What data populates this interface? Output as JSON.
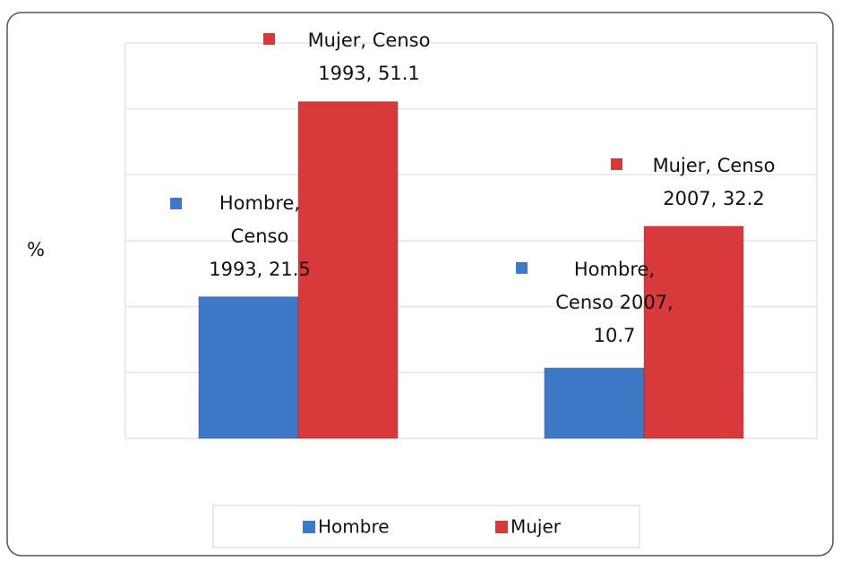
{
  "chart_data": {
    "type": "bar",
    "y_label": "%",
    "categories": [
      null,
      null
    ],
    "series": [
      {
        "name": "Hombre",
        "color": "#3f78c6",
        "values": [
          21.5,
          10.7
        ],
        "value_labels": [
          "Hombre, Censo 1993, 21.5",
          "Hombre, Censo 2007, 10.7"
        ]
      },
      {
        "name": "Mujer",
        "color": "#d8393b",
        "values": [
          51.1,
          32.2
        ],
        "value_labels": [
          "Mujer, Censo 1993, 51.1",
          "Mujer, Censo 2007, 32.2"
        ]
      }
    ],
    "ylim": [
      0,
      60
    ],
    "yticks": [
      0,
      10,
      20,
      30,
      40,
      50,
      60
    ],
    "grid": true,
    "legend": "bottom"
  }
}
